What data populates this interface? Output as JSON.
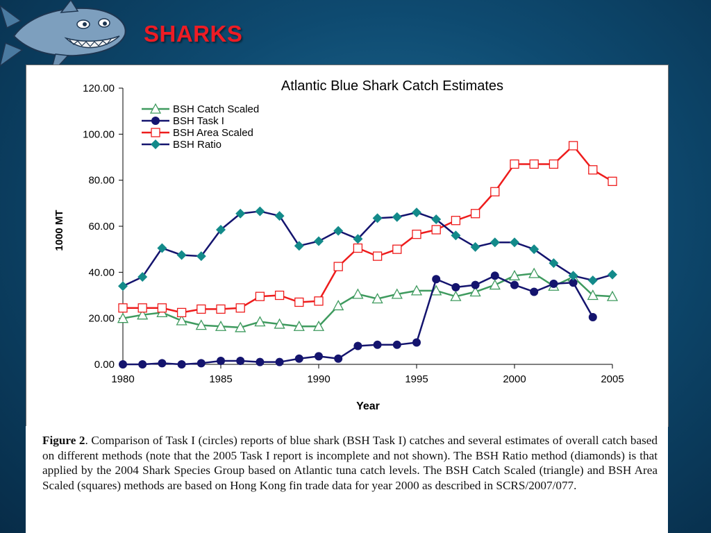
{
  "slide": {
    "title": "SHARKS",
    "title_color": "#ee1c24",
    "logo_icon": "cartoon-shark-icon"
  },
  "caption": {
    "label": "Figure 2",
    "text": ". Comparison of Task I (circles) reports of blue shark (BSH Task I) catches and several estimates of overall catch based on different methods (note that the 2005 Task I report is incomplete and not shown). The BSH Ratio method (diamonds) is that applied by the 2004 Shark Species Group based on Atlantic tuna catch levels. The BSH Catch Scaled (triangle) and BSH Area Scaled (squares) methods are based on Hong Kong fin trade data for year 2000 as described in SCRS/2007/077."
  },
  "chart_data": {
    "type": "line",
    "title": "Atlantic Blue Shark Catch Estimates",
    "xlabel": "Year",
    "ylabel": "1000 MT",
    "xlim": [
      1980,
      2005
    ],
    "ylim": [
      0,
      120
    ],
    "x_ticks": [
      "1980",
      "1985",
      "1990",
      "1995",
      "2000",
      "2005"
    ],
    "y_ticks": [
      "0.00",
      "20.00",
      "40.00",
      "60.00",
      "80.00",
      "100.00",
      "120.00"
    ],
    "grid": false,
    "legend_position": "top-left",
    "x": [
      1980,
      1981,
      1982,
      1983,
      1984,
      1985,
      1986,
      1987,
      1988,
      1989,
      1990,
      1991,
      1992,
      1993,
      1994,
      1995,
      1996,
      1997,
      1998,
      1999,
      2000,
      2001,
      2002,
      2003,
      2004,
      2005
    ],
    "series": [
      {
        "name": "BSH Catch Scaled",
        "marker": "triangle",
        "color": "#3e9a5e",
        "values": [
          20,
          21.5,
          22.5,
          19,
          17,
          16.5,
          16,
          18.5,
          17.5,
          16.5,
          16.5,
          25.5,
          30.5,
          28.5,
          30.5,
          32,
          32,
          29.5,
          31.5,
          34.5,
          38.5,
          39.5,
          34,
          38,
          30,
          29.5
        ]
      },
      {
        "name": "BSH Task I",
        "marker": "circle",
        "color": "#14146e",
        "values": [
          0,
          0,
          0.5,
          0,
          0.5,
          1.5,
          1.5,
          1,
          1,
          2.5,
          3.5,
          2.5,
          8,
          8.5,
          8.5,
          9.5,
          37,
          33.5,
          34.5,
          38.5,
          34.5,
          31.5,
          35,
          35.5,
          20.5,
          null
        ]
      },
      {
        "name": "BSH Area Scaled",
        "marker": "square",
        "color": "#ee1c1c",
        "values": [
          24.5,
          24.5,
          24.5,
          22.5,
          24,
          24,
          24.5,
          29.5,
          30,
          27,
          27.5,
          42.5,
          50.5,
          47,
          50,
          56.5,
          58.5,
          62.5,
          65.5,
          75,
          87,
          87,
          87,
          95,
          84.5,
          79.5
        ]
      },
      {
        "name": "BSH Ratio",
        "marker": "diamond",
        "color": "#14146e",
        "marker_color": "#138a8a",
        "values": [
          34,
          38,
          50.5,
          47.5,
          47,
          58.5,
          65.5,
          66.5,
          64.5,
          51.5,
          53.5,
          58,
          54.5,
          63.5,
          64,
          66,
          63,
          56,
          51,
          53,
          53,
          50,
          44,
          38.5,
          36.5,
          39
        ]
      }
    ]
  }
}
